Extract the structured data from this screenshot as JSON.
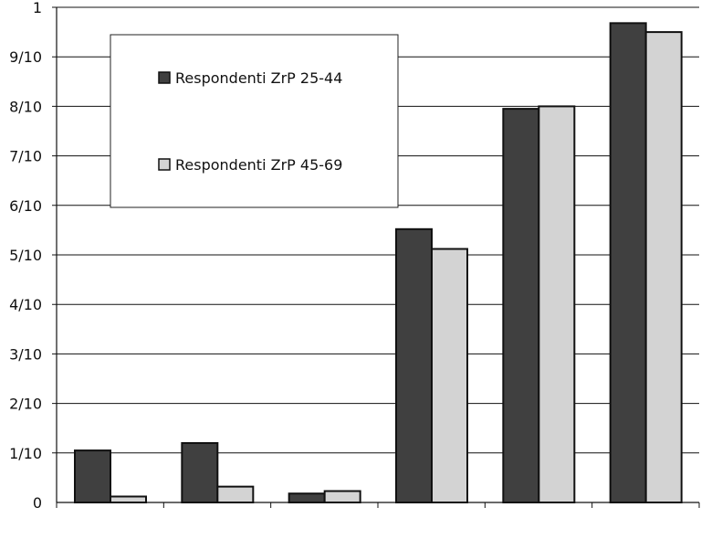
{
  "chart_data": {
    "type": "bar",
    "title": "",
    "xlabel": "",
    "ylabel": "",
    "ylim": [
      0,
      1
    ],
    "y_tick_labels": [
      "0",
      "1/10",
      "2/10",
      "3/10",
      "4/10",
      "5/10",
      "6/10",
      "7/10",
      "8/10",
      "9/10",
      "1"
    ],
    "categories": [
      "",
      "",
      "",
      "",
      "",
      ""
    ],
    "grid": "horizontal",
    "legend_position": "top-left, inside plot",
    "series": [
      {
        "name": "Respondenti ZrP 25-44",
        "color": "#404040",
        "values": [
          0.105,
          0.12,
          0.018,
          0.552,
          0.795,
          0.968
        ]
      },
      {
        "name": "Respondenti ZrP 45-69",
        "color": "#d3d3d3",
        "values": [
          0.012,
          0.032,
          0.023,
          0.512,
          0.8,
          0.95
        ]
      }
    ]
  }
}
